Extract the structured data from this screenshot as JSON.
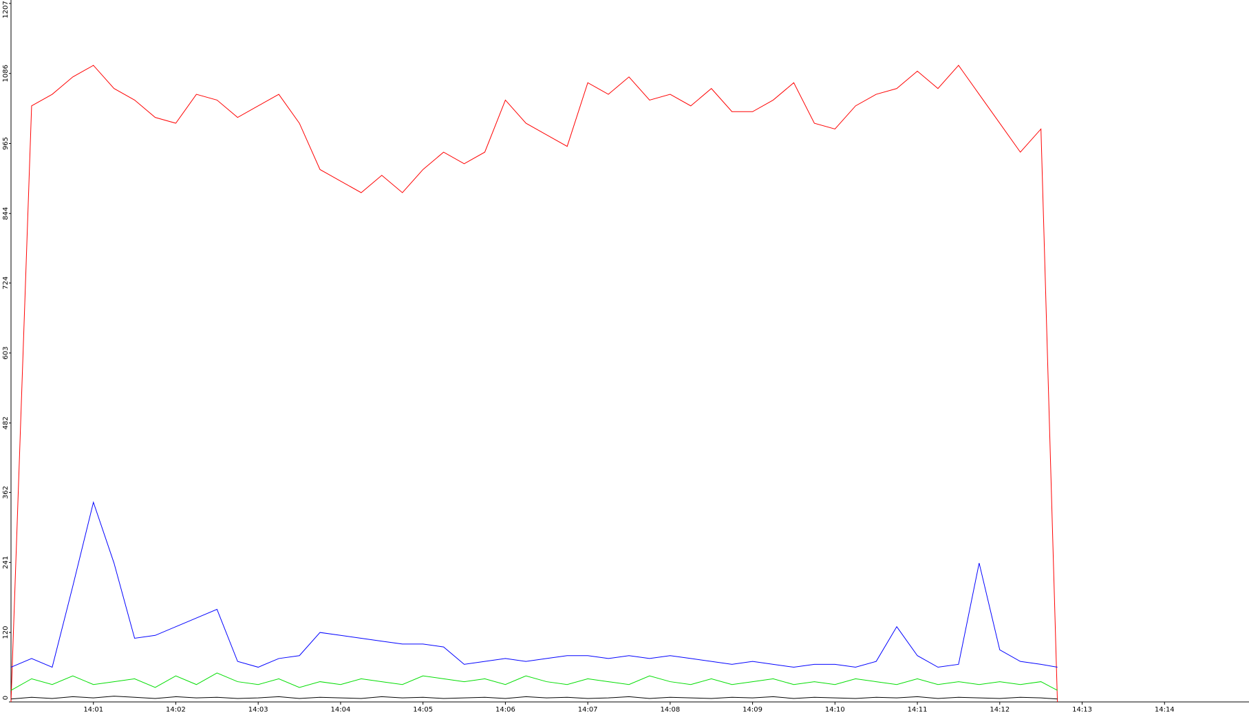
{
  "chart_data": {
    "type": "line",
    "x": [
      840,
      840.25,
      840.5,
      840.75,
      841,
      841.25,
      841.5,
      841.75,
      842,
      842.25,
      842.5,
      842.75,
      843,
      843.25,
      843.5,
      843.75,
      844,
      844.25,
      844.5,
      844.75,
      845,
      845.25,
      845.5,
      845.75,
      846,
      846.25,
      846.5,
      846.75,
      847,
      847.25,
      847.5,
      847.75,
      848,
      848.25,
      848.5,
      848.75,
      849,
      849.25,
      849.5,
      849.75,
      850,
      850.25,
      850.5,
      850.75,
      851,
      851.25,
      851.5,
      851.75,
      852,
      852.25,
      852.5,
      852.7
    ],
    "series": [
      {
        "name": "red",
        "color": "#ff0000",
        "values": [
          0,
          1030,
          1050,
          1080,
          1100,
          1060,
          1040,
          1010,
          1000,
          1050,
          1040,
          1010,
          1030,
          1050,
          1000,
          920,
          900,
          880,
          910,
          880,
          920,
          950,
          930,
          950,
          1040,
          1000,
          980,
          960,
          1070,
          1050,
          1080,
          1040,
          1050,
          1030,
          1060,
          1020,
          1020,
          1040,
          1070,
          1000,
          990,
          1030,
          1050,
          1060,
          1090,
          1060,
          1100,
          1050,
          1000,
          950,
          990,
          0
        ]
      },
      {
        "name": "blue",
        "color": "#0000ff",
        "values": [
          60,
          75,
          60,
          200,
          345,
          240,
          110,
          115,
          130,
          145,
          160,
          70,
          60,
          75,
          80,
          120,
          115,
          110,
          105,
          100,
          100,
          95,
          65,
          70,
          75,
          70,
          75,
          80,
          80,
          75,
          80,
          75,
          80,
          75,
          70,
          65,
          70,
          65,
          60,
          65,
          65,
          60,
          70,
          130,
          80,
          60,
          65,
          240,
          90,
          70,
          65,
          60
        ]
      },
      {
        "name": "green",
        "color": "#00dd00",
        "values": [
          20,
          40,
          30,
          45,
          30,
          35,
          40,
          25,
          45,
          30,
          50,
          35,
          30,
          40,
          25,
          35,
          30,
          40,
          35,
          30,
          45,
          40,
          35,
          40,
          30,
          45,
          35,
          30,
          40,
          35,
          30,
          45,
          35,
          30,
          40,
          30,
          35,
          40,
          30,
          35,
          30,
          40,
          35,
          30,
          40,
          30,
          35,
          30,
          35,
          30,
          35,
          20
        ]
      },
      {
        "name": "black",
        "color": "#000000",
        "values": [
          5,
          8,
          6,
          9,
          7,
          10,
          8,
          6,
          9,
          7,
          8,
          6,
          7,
          9,
          6,
          8,
          7,
          6,
          9,
          7,
          8,
          6,
          7,
          8,
          6,
          9,
          7,
          8,
          6,
          7,
          9,
          6,
          8,
          7,
          6,
          8,
          7,
          9,
          6,
          8,
          7,
          6,
          8,
          7,
          9,
          6,
          8,
          7,
          6,
          8,
          7,
          5
        ]
      }
    ],
    "xlim": [
      840,
      855
    ],
    "xticks": [
      {
        "value": 841,
        "label": "14:01"
      },
      {
        "value": 842,
        "label": "14:02"
      },
      {
        "value": 843,
        "label": "14:03"
      },
      {
        "value": 844,
        "label": "14:04"
      },
      {
        "value": 845,
        "label": "14:05"
      },
      {
        "value": 846,
        "label": "14:06"
      },
      {
        "value": 847,
        "label": "14:07"
      },
      {
        "value": 848,
        "label": "14:08"
      },
      {
        "value": 849,
        "label": "14:09"
      },
      {
        "value": 850,
        "label": "14:10"
      },
      {
        "value": 851,
        "label": "14:11"
      },
      {
        "value": 852,
        "label": "14:12"
      },
      {
        "value": 853,
        "label": "14:13"
      },
      {
        "value": 854,
        "label": "14:14"
      }
    ],
    "ylim": [
      0,
      1207
    ],
    "yticks": [
      0,
      120,
      241,
      362,
      482,
      603,
      724,
      844,
      965,
      1086,
      1207
    ]
  }
}
